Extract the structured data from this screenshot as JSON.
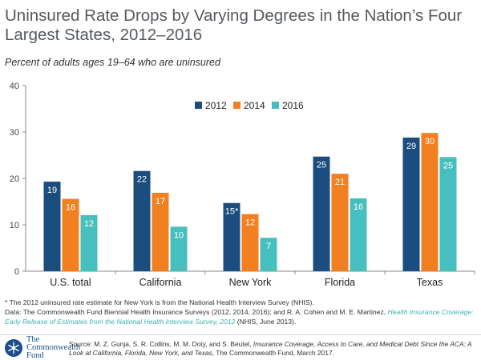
{
  "header": {
    "title": "Uninsured Rate Drops by Varying Degrees in the Nation’s Four Largest States, 2012–2016",
    "subtitle": "Percent of adults ages 19–64 who are uninsured"
  },
  "chart_data": {
    "type": "bar",
    "categories": [
      "U.S. total",
      "California",
      "New York",
      "Florida",
      "Texas"
    ],
    "series": [
      {
        "name": "2012",
        "color": "#1b4e7e",
        "values": [
          19.3,
          21.6,
          14.7,
          24.7,
          28.8
        ],
        "labels": [
          "19",
          "22",
          "15*",
          "25",
          "29"
        ]
      },
      {
        "name": "2014",
        "color": "#f28021",
        "values": [
          15.6,
          16.9,
          12.3,
          21.0,
          29.8
        ],
        "labels": [
          "16",
          "17",
          "12",
          "21",
          "30"
        ]
      },
      {
        "name": "2016",
        "color": "#48bfbf",
        "values": [
          12.1,
          9.6,
          7.2,
          15.7,
          24.6
        ],
        "labels": [
          "12",
          "10",
          "7",
          "16",
          "25"
        ]
      }
    ],
    "yticks": [
      "0",
      "10",
      "20",
      "30",
      "40"
    ],
    "ylim": [
      0,
      40
    ],
    "legend_position": "top-center"
  },
  "footnotes": {
    "note": "* The 2012 uninsured rate estimate for New York is from the National Health Interview Survey (NHIS).",
    "data_prefix": "Data: The Commonwealth Fund Biennial Health Insurance Surveys (2012, 2014, 2016);  and R. A. Cohen and M. E. Martinez, ",
    "data_link": "Health Insurance Coverage: Early Release of Estimates from the National Health Interview Survey, 2012",
    "data_suffix": " (NHIS, June 2013)."
  },
  "logo": {
    "line1": "The",
    "line2": "Commonwealth",
    "line3": "Fund"
  },
  "source": {
    "prefix": "Source: M. Z. Gunja, S. R. Collins, M. M. Doty, and S. Beutel, ",
    "italic": "Insurance Coverage, Access to Care, and Medical Debt Since the ACA: A Look at California, Florida, New York, and Texas",
    "suffix": ", The Commonwealth Fund, March 2017."
  }
}
